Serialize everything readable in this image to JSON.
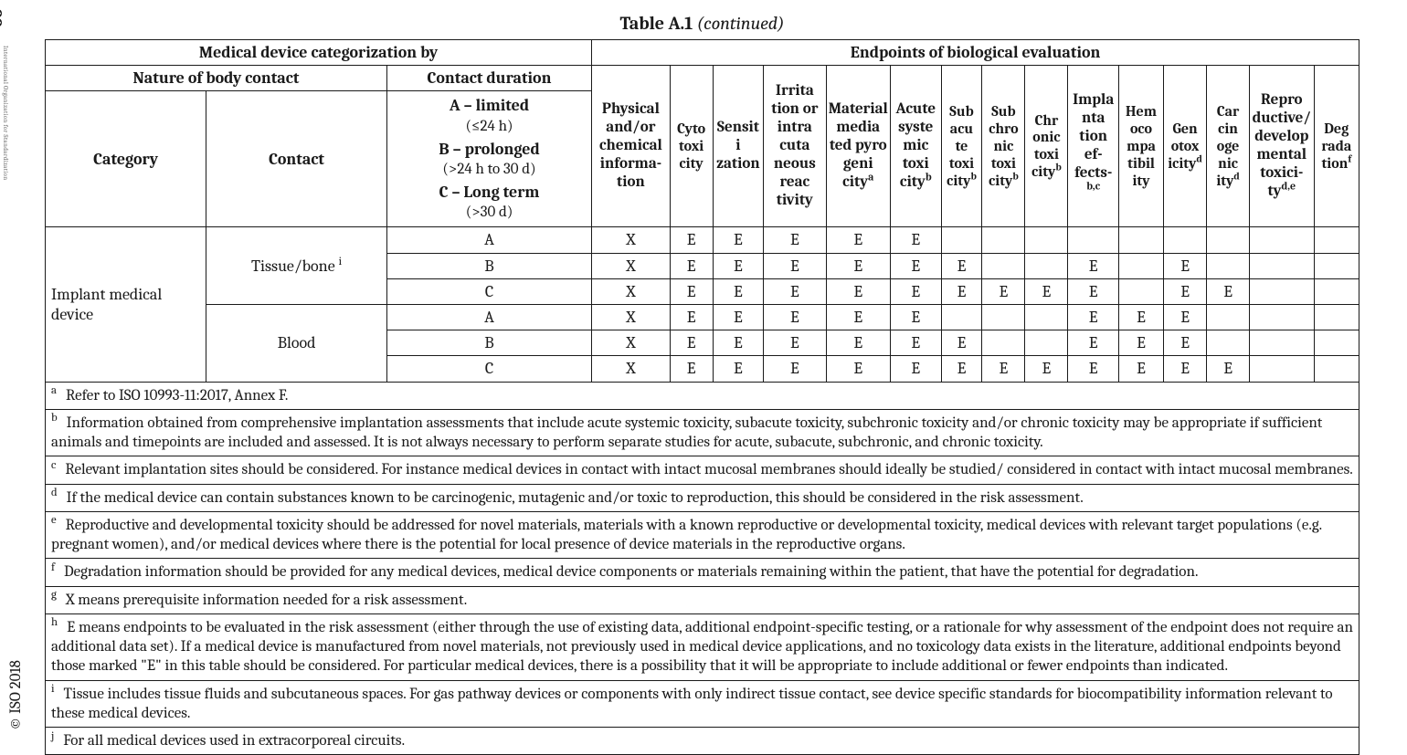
{
  "caption": {
    "label": "Table A.1",
    "status": "(continued)"
  },
  "side": {
    "page_num": "22",
    "org_text": "International Organization for Standardization",
    "copyright": "© ISO 2018"
  },
  "header": {
    "group_left": "Medical device categorization by",
    "group_right": "Endpoints of biological evaluation",
    "nature": "Nature of body contact",
    "contact_duration": "Contact duration",
    "category": "Category",
    "contact": "Contact",
    "duration_a_title": "A – limited",
    "duration_a_sub": "(≤24 h)",
    "duration_b_title": "B – prolonged",
    "duration_b_sub": "(>24 h to 30 d)",
    "duration_c_title": "C – Long term",
    "duration_c_sub": "(>30 d)"
  },
  "endpoints": [
    {
      "t": "Physical and/or chemical informa­tion",
      "s": ""
    },
    {
      "t": "Cyto toxi city",
      "s": ""
    },
    {
      "t": "Sensiti zation",
      "s": ""
    },
    {
      "t": "Irrita tion or intra cuta neous reac tivity",
      "s": ""
    },
    {
      "t": "Ma­terial media ted pyro geni city",
      "s": "a"
    },
    {
      "t": "Acute syste mic toxi city",
      "s": "b"
    },
    {
      "t": "Sub acu te toxi city",
      "s": "b"
    },
    {
      "t": "Sub chro nic toxi city",
      "s": "b"
    },
    {
      "t": "Chr onic toxi city",
      "s": "b"
    },
    {
      "t": "Impla nta tion ef­fects­",
      "s": "b,c"
    },
    {
      "t": "Hem oco mpa tibil ity",
      "s": ""
    },
    {
      "t": "Gen otox ici­ty",
      "s": "d"
    },
    {
      "t": "Car cin oge nic ity",
      "s": "d"
    },
    {
      "t": "Repro duc­tive/ develop mental toxici­ty",
      "s": "d,e"
    },
    {
      "t": "Deg rada tion",
      "s": "f"
    }
  ],
  "colwidths": {
    "category": 165,
    "contact": 185,
    "duration": 210,
    "ep": [
      80,
      44,
      52,
      64,
      66,
      52,
      42,
      44,
      44,
      52,
      46,
      44,
      44,
      66,
      46
    ]
  },
  "body": {
    "category_label": "Implant medical device",
    "blocks": [
      {
        "contact": "Tissue/bone",
        "contact_sup": "i",
        "rows": [
          {
            "d": "A",
            "v": [
              "X",
              "E",
              "E",
              "E",
              "E",
              "E",
              "",
              "",
              "",
              "",
              "",
              "",
              "",
              "",
              ""
            ]
          },
          {
            "d": "B",
            "v": [
              "X",
              "E",
              "E",
              "E",
              "E",
              "E",
              "E",
              "",
              "",
              "E",
              "",
              "E",
              "",
              "",
              ""
            ]
          },
          {
            "d": "C",
            "v": [
              "X",
              "E",
              "E",
              "E",
              "E",
              "E",
              "E",
              "E",
              "E",
              "E",
              "",
              "E",
              "E",
              "",
              ""
            ]
          }
        ]
      },
      {
        "contact": "Blood",
        "contact_sup": "",
        "rows": [
          {
            "d": "A",
            "v": [
              "X",
              "E",
              "E",
              "E",
              "E",
              "E",
              "",
              "",
              "",
              "E",
              "E",
              "E",
              "",
              "",
              ""
            ]
          },
          {
            "d": "B",
            "v": [
              "X",
              "E",
              "E",
              "E",
              "E",
              "E",
              "E",
              "",
              "",
              "E",
              "E",
              "E",
              "",
              "",
              ""
            ]
          },
          {
            "d": "C",
            "v": [
              "X",
              "E",
              "E",
              "E",
              "E",
              "E",
              "E",
              "E",
              "E",
              "E",
              "E",
              "E",
              "E",
              "",
              ""
            ]
          }
        ]
      }
    ]
  },
  "footnotes": [
    {
      "tag": "a",
      "text": "Refer to ISO 10993-11:2017, Annex F."
    },
    {
      "tag": "b",
      "text": "Information obtained from comprehensive implantation assessments that include acute systemic toxicity, subacute toxicity, subchronic toxicity and/or chronic toxicity may be appropriate if sufficient animals and timepoints are included and assessed.  It is not always necessary to perform separate studies for acute, subacute, subchronic, and chronic toxicity."
    },
    {
      "tag": "c",
      "text": "Relevant implantation sites should be considered. For instance medical devices in contact with intact mucosal membranes should ideally be studied/ considered in contact with intact mucosal membranes."
    },
    {
      "tag": "d",
      "text": "If the medical device can contain substances known to be carcinogenic, mutagenic and/or toxic to reproduction, this should be considered in the risk assessment."
    },
    {
      "tag": "e",
      "text": "Reproductive and developmental toxicity should be addressed for novel materials, materials with a known reproductive or developmental toxicity, medical devices with relevant target populations (e.g. pregnant women), and/or medical devices where there is the potential for local presence of device materials in the reproductive organs."
    },
    {
      "tag": "f",
      "text": "Degradation information should be provided for any medical devices, medical device components or materials remaining within the patient, that have the potential for degradation."
    },
    {
      "tag": "g",
      "text": "X means prerequisite information needed for a risk assessment."
    },
    {
      "tag": "h",
      "text": "E means endpoints to be evaluated in the risk assessment (either through the use of existing data, additional endpoint-specific testing, or a rationale for why assessment of the endpoint does not require an additional data set). If a medical device is manufactured from novel materials, not previously used in medical device applications, and no toxicology data exists in the literature, additional endpoints beyond those marked \"E\" in this table should be considered. For particular medical devices, there is a possibility that it will be appropriate to include additional or fewer endpoints than indicated."
    },
    {
      "tag": "i",
      "text": "Tissue includes tissue fluids and subcutaneous spaces. For gas pathway devices or components with only indirect tissue contact, see device specific standards for biocompatibility information relevant to these medical devices."
    },
    {
      "tag": "j",
      "text": "For all medical devices used in extracorporeal circuits."
    }
  ]
}
